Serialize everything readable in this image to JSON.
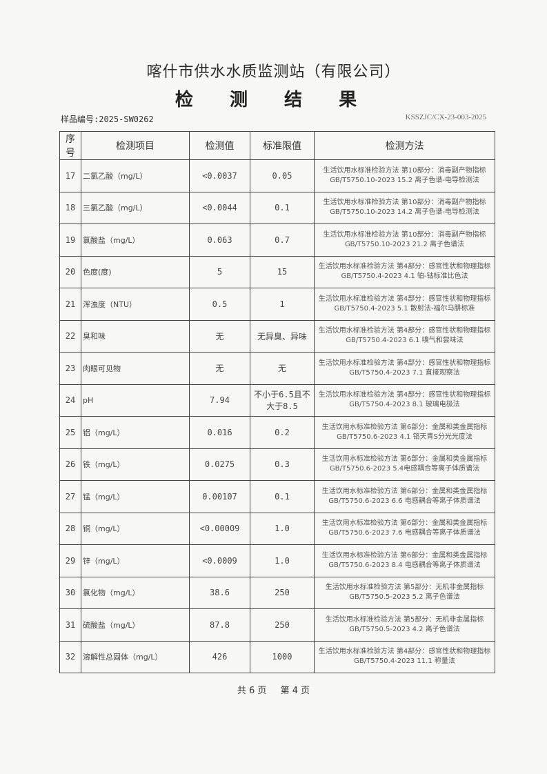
{
  "header": {
    "organization": "喀什市供水水质监测站（有限公司）",
    "title": "检 测 结 果",
    "sample_no": "样品编号:2025-SW0262",
    "doc_code": "KSSZJC/CX-23-003-2025"
  },
  "table": {
    "columns": [
      "序号",
      "检测项目",
      "检测值",
      "标准限值",
      "检测方法"
    ],
    "rows": [
      {
        "no": "17",
        "item": "二氯乙酸（mg/L）",
        "value": "<0.0037",
        "limit": "0.05",
        "method": "生活饮用水标准检验方法 第10部分：消毒副产物指标 GB/T5750.10-2023 15.2 离子色谱-电导检测法"
      },
      {
        "no": "18",
        "item": "三氯乙酸（mg/L）",
        "value": "<0.0044",
        "limit": "0.1",
        "method": "生活饮用水标准检验方法 第10部分：消毒副产物指标 GB/T5750.10-2023 14.2 离子色谱-电导检测法"
      },
      {
        "no": "19",
        "item": "氯酸盐（mg/L）",
        "value": "0.063",
        "limit": "0.7",
        "method": "生活饮用水标准检验方法 第10部分：消毒副产物指标 GB/T5750.10-2023 21.2 离子色谱法"
      },
      {
        "no": "20",
        "item": "色度(度)",
        "value": "5",
        "limit": "15",
        "method": "生活饮用水标准检验方法 第4部分：感官性状和物理指标 GB/T5750.4-2023 4.1 铂-钴标准比色法"
      },
      {
        "no": "21",
        "item": "浑浊度（NTU）",
        "value": "0.5",
        "limit": "1",
        "method": "生活饮用水标准检验方法 第4部分：感官性状和物理指标 GB/T5750.4-2023 5.1 散射法-福尔马肼标准"
      },
      {
        "no": "22",
        "item": "臭和味",
        "value": "无",
        "limit": "无异臭、异味",
        "method": "生活饮用水标准检验方法 第4部分：感官性状和物理指标 GB/T5750.4-2023 6.1 嗅气和尝味法"
      },
      {
        "no": "23",
        "item": "肉眼可见物",
        "value": "无",
        "limit": "无",
        "method": "生活饮用水标准检验方法 第4部分：感官性状和物理指标 GB/T5750.4-2023 7.1 直接观察法"
      },
      {
        "no": "24",
        "item": "pH",
        "value": "7.94",
        "limit": "不小于6.5且不大于8.5",
        "method": "生活饮用水标准检验方法 第4部分：感官性状和物理指标 GB/T5750.4-2023 8.1 玻璃电极法"
      },
      {
        "no": "25",
        "item": "铝（mg/L）",
        "value": "0.016",
        "limit": "0.2",
        "method": "生活饮用水标准检验方法 第6部分：金属和类金属指标 GB/T5750.6-2023 4.1 铬天青S分光光度法"
      },
      {
        "no": "26",
        "item": "铁（mg/L）",
        "value": "0.0275",
        "limit": "0.3",
        "method": "生活饮用水标准检验方法 第6部分：金属和类金属指标 GB/T5750.6-2023 5.4电感耦合等离子体质谱法"
      },
      {
        "no": "27",
        "item": "锰（mg/L）",
        "value": "0.00107",
        "limit": "0.1",
        "method": "生活饮用水标准检验方法 第6部分：金属和类金属指标 GB/T5750.6-2023 6.6 电感耦合等离子体质谱法"
      },
      {
        "no": "28",
        "item": "铜（mg/L）",
        "value": "<0.00009",
        "limit": "1.0",
        "method": "生活饮用水标准检验方法 第6部分：金属和类金属指标 GB/T5750.6-2023 7.6 电感耦合等离子体质谱法"
      },
      {
        "no": "29",
        "item": "锌（mg/L）",
        "value": "<0.0009",
        "limit": "1.0",
        "method": "生活饮用水标准检验方法 第6部分：金属和类金属指标 GB/T5750.6-2023 8.4 电感耦合等离子体质谱法"
      },
      {
        "no": "30",
        "item": "氯化物（mg/L）",
        "value": "38.6",
        "limit": "250",
        "method": "生活饮用水标准检验方法 第5部分：无机非金属指标 GB/T5750.5-2023 5.2 离子色谱法"
      },
      {
        "no": "31",
        "item": "硫酸盐（mg/L）",
        "value": "87.8",
        "limit": "250",
        "method": "生活饮用水标准检验方法 第5部分：无机非金属指标 GB/T5750.5-2023 4.2 离子色谱法"
      },
      {
        "no": "32",
        "item": "溶解性总固体（mg/L）",
        "value": "426",
        "limit": "1000",
        "method": "生活饮用水标准检验方法 第4部分：感官性状和物理指标 GB/T5750.4-2023 11.1 称量法"
      }
    ]
  },
  "footer": {
    "total": "共 6 页",
    "current": "第 4 页"
  }
}
